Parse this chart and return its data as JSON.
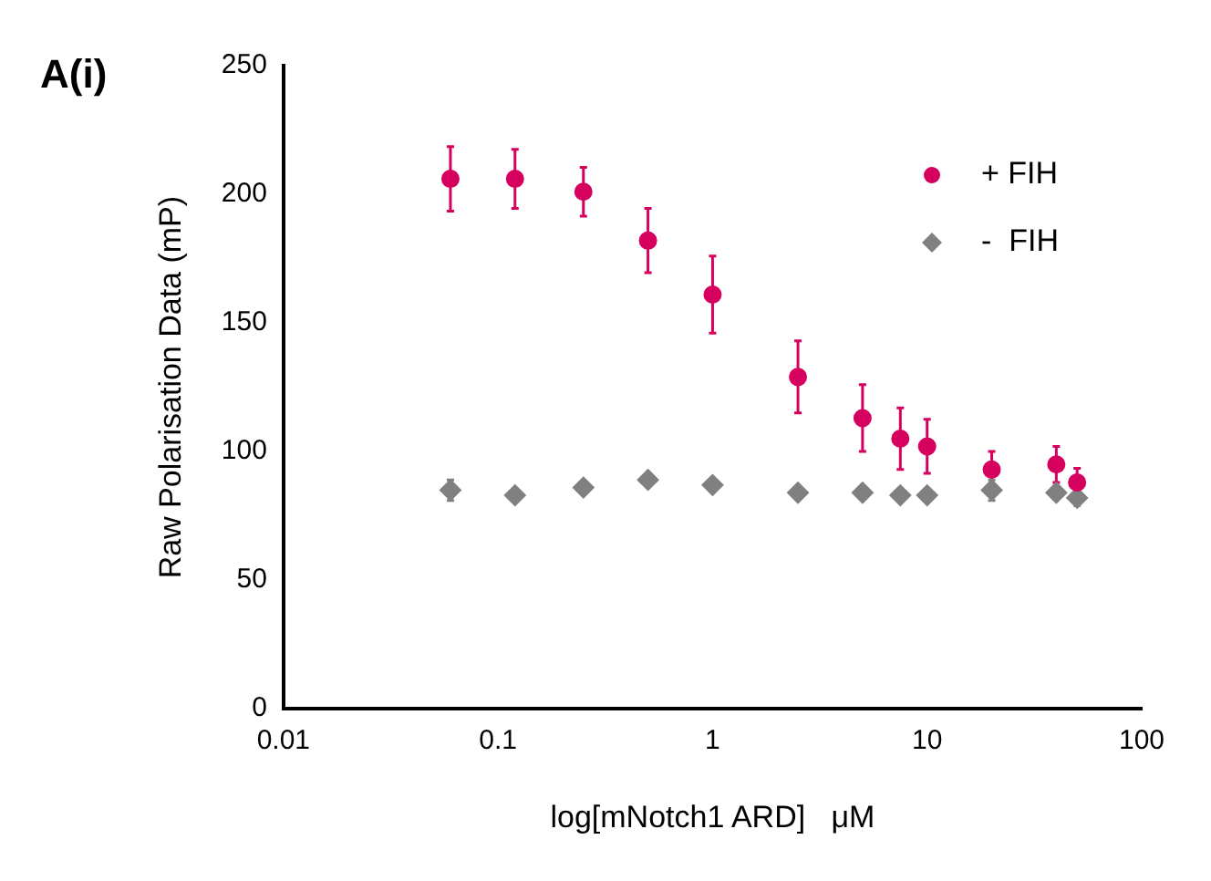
{
  "chart_data": {
    "type": "scatter",
    "title": "A(i)",
    "xlabel": "log[mNotch1 ARD]   μM",
    "ylabel": "Raw Polarisation Data (mP)",
    "log": "x",
    "xlim": [
      0.01,
      100
    ],
    "xticks": [
      0.01,
      0.1,
      1,
      10,
      100
    ],
    "ylim": [
      0,
      250
    ],
    "yticks": [
      0,
      50,
      100,
      150,
      200,
      250
    ],
    "grid": false,
    "legend": "top right",
    "x": [
      0.06,
      0.12,
      0.25,
      0.5,
      1,
      2.5,
      5,
      7.5,
      10,
      20,
      40,
      50
    ],
    "series": [
      {
        "name": "+ FIH",
        "color": "#d6005f",
        "marker": "circle",
        "values": [
          206,
          206,
          201,
          182,
          161,
          129,
          113,
          105,
          102,
          93,
          95,
          88
        ],
        "errors": [
          12.5,
          11.5,
          9.5,
          12.5,
          15,
          14,
          13,
          12,
          10.5,
          7,
          7,
          5.5
        ]
      },
      {
        "name": "-  FIH",
        "color": "#808080",
        "marker": "diamond",
        "values": [
          85,
          83,
          86,
          89,
          87,
          84,
          84,
          83,
          83,
          85,
          84,
          82
        ],
        "errors": [
          4,
          null,
          null,
          null,
          null,
          null,
          null,
          null,
          null,
          4,
          null,
          3
        ]
      }
    ]
  }
}
